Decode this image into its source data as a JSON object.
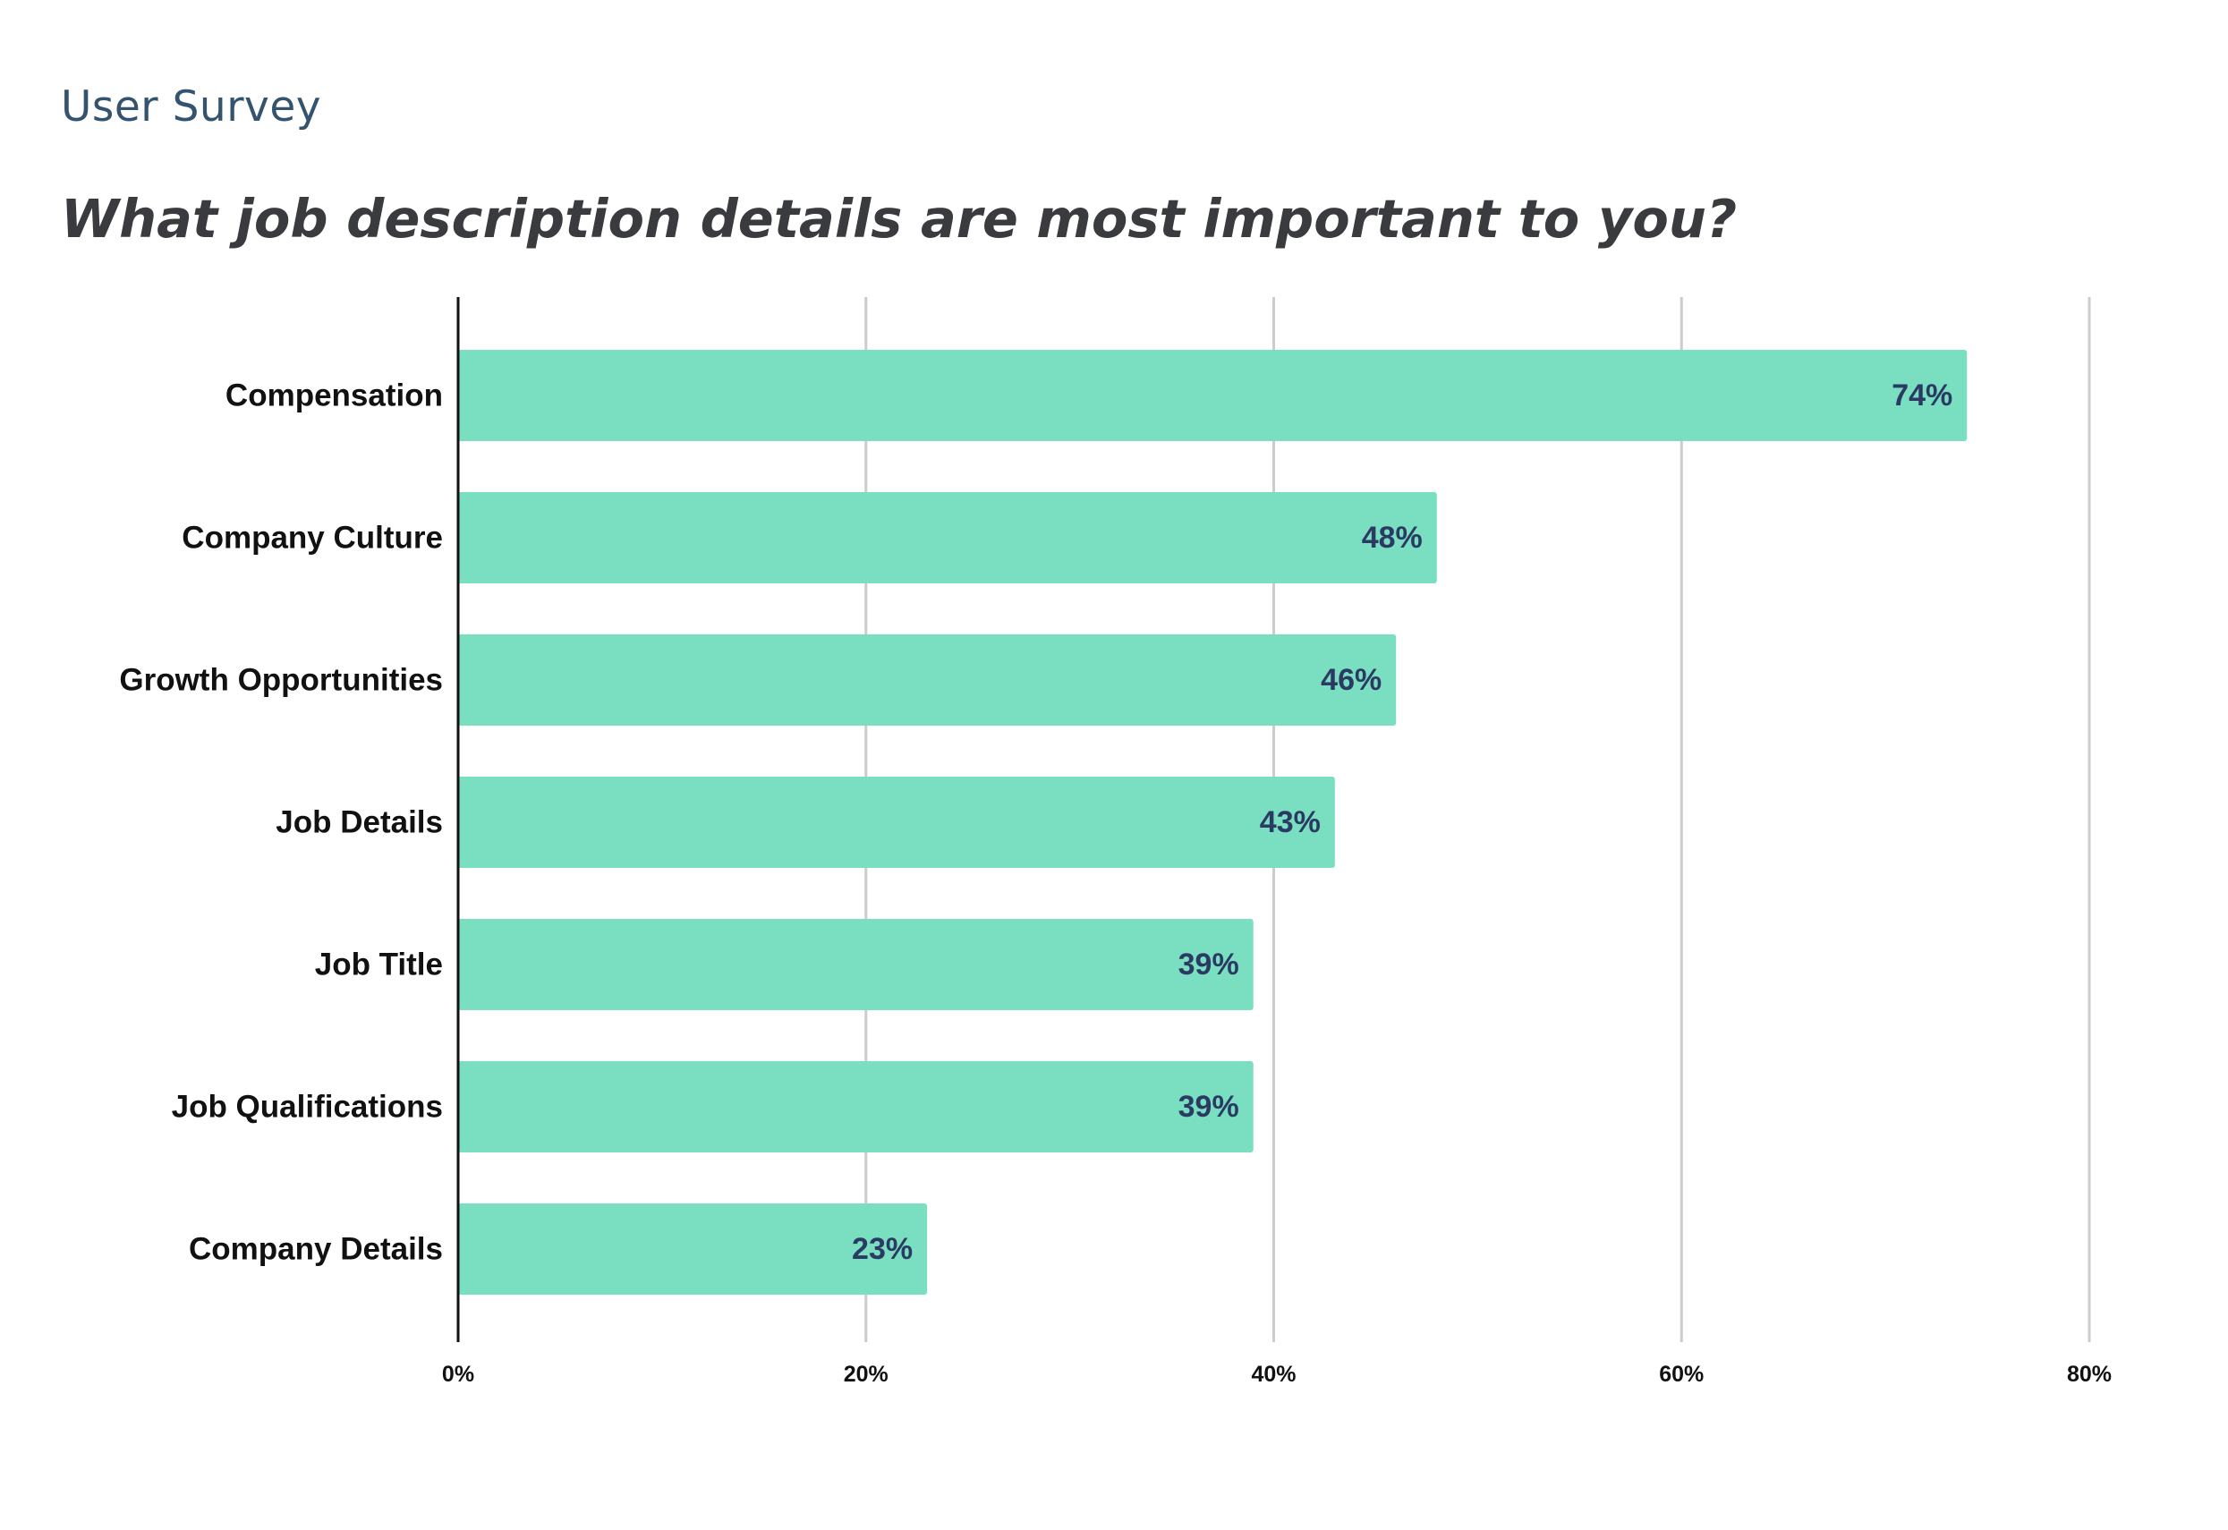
{
  "header": {
    "subtitle": "User Survey",
    "title": "What job description details are most important to you?"
  },
  "colors": {
    "bar": "#7ADFC1",
    "value_label": "#2B3A63",
    "gridline": "#CCCCCC",
    "axis": "#111111"
  },
  "chart_data": {
    "type": "bar",
    "orientation": "horizontal",
    "categories": [
      "Compensation",
      "Company Culture",
      "Growth Opportunities",
      "Job Details",
      "Job Title",
      "Job Qualifications",
      "Company Details"
    ],
    "values": [
      74,
      48,
      46,
      43,
      39,
      39,
      23
    ],
    "value_labels": [
      "74%",
      "48%",
      "46%",
      "43%",
      "39%",
      "39%",
      "23%"
    ],
    "xlim": [
      0,
      80
    ],
    "x_ticks": [
      0,
      20,
      40,
      60,
      80
    ],
    "x_tick_labels": [
      "0%",
      "20%",
      "40%",
      "60%",
      "80%"
    ],
    "grid": true,
    "legend": false
  }
}
